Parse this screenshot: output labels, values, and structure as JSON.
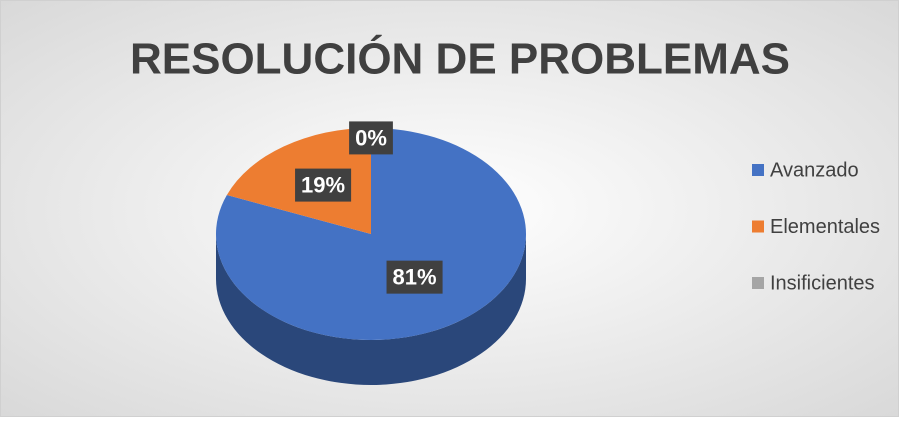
{
  "chart_data": {
    "type": "pie3d",
    "title": "RESOLUCIÓN DE PROBLEMAS",
    "categories": [
      "Avanzado",
      "Elementales",
      "Insificientes"
    ],
    "values": [
      81,
      19,
      0
    ],
    "value_labels": [
      "81%",
      "19%",
      "0%"
    ],
    "colors": [
      "#4472c4",
      "#ed7d31",
      "#a5a5a5"
    ],
    "legend": "right"
  }
}
